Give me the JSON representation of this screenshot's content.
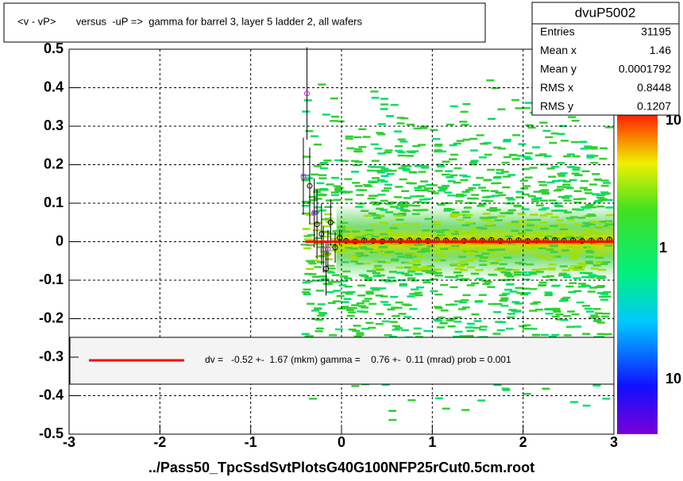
{
  "chart_data": {
    "type": "scatter",
    "title": "<v - vP>       versus  -uP =>  gamma for barrel 3, layer 5 ladder 2, all wafers",
    "x_label": "../Pass50_TpcSsdSvtPlotsG40G100NFP25rCut0.5cm.root",
    "xlim": [
      -3,
      3
    ],
    "xticks": [
      -3,
      -2,
      -1,
      0,
      1,
      2,
      3
    ],
    "ylim": [
      -0.5,
      0.5
    ],
    "yticks": [
      -0.5,
      -0.4,
      -0.3,
      -0.2,
      -0.1,
      0,
      0.1,
      0.2,
      0.3,
      0.4,
      0.5
    ],
    "grid": true,
    "points": [
      {
        "color": "#000000",
        "x": [
          -0.35,
          -0.27,
          -0.22,
          -0.17,
          -0.12,
          -0.07,
          -0.02,
          0.05,
          0.15,
          0.25,
          0.35,
          0.45,
          0.55,
          0.65,
          0.75,
          0.85,
          0.95,
          1.05,
          1.15,
          1.25,
          1.35,
          1.45,
          1.55,
          1.65,
          1.75,
          1.85,
          1.95,
          2.05,
          2.15,
          2.25,
          2.35,
          2.45,
          2.55,
          2.65,
          2.75,
          2.85,
          2.95
        ],
        "values": [
          0.145,
          0.045,
          0.02,
          -0.07,
          0.05,
          -0.015,
          0.01,
          0.002,
          0.001,
          0.003,
          0.002,
          0.001,
          0.003,
          0.002,
          0.004,
          0.003,
          0.002,
          0.005,
          0.003,
          0.004,
          0.002,
          0.004,
          0.003,
          0.005,
          0.002,
          0.003,
          0.004,
          0.002,
          0.003,
          0.004,
          0.005,
          0.003,
          0.004,
          0.002,
          0.003,
          0.004,
          0.006
        ],
        "errors": [
          0.1,
          0.09,
          0.08,
          0.07,
          0.06,
          0.04,
          0.02,
          0.005,
          0.005,
          0.005,
          0.005,
          0.005,
          0.005,
          0.005,
          0.005,
          0.005,
          0.005,
          0.005,
          0.005,
          0.005,
          0.005,
          0.005,
          0.005,
          0.005,
          0.005,
          0.005,
          0.005,
          0.005,
          0.005,
          0.005,
          0.005,
          0.005,
          0.005,
          0.005,
          0.005,
          0.005,
          0.006
        ]
      },
      {
        "color": "#ff00ff",
        "x": [
          -0.42,
          -0.38,
          -0.3,
          -0.2,
          -0.15
        ],
        "values": [
          0.17,
          0.385,
          0.075,
          -0.02,
          -0.02
        ],
        "errors": [
          0.1,
          0.12,
          0.09,
          0.06,
          0.05
        ]
      }
    ],
    "fit": {
      "color": "#ff0000",
      "x": [
        -0.4,
        3
      ],
      "values": [
        0,
        0
      ]
    },
    "fit_text": "dv =   -0.52 +-  1.67 (mkm) gamma =    0.76 +-  0.11 (mrad) prob = 0.001",
    "color_scale_labels": [
      "10",
      "1",
      "10"
    ],
    "stats": {
      "title": "dvuP5002",
      "rows": [
        {
          "label": "Entries",
          "value": 31195
        },
        {
          "label": "Mean x",
          "value": 1.46
        },
        {
          "label": "Mean y",
          "value": 0.0001792
        },
        {
          "label": "RMS x",
          "value": 0.8448
        },
        {
          "label": "RMS y",
          "value": 0.1207
        }
      ]
    }
  }
}
